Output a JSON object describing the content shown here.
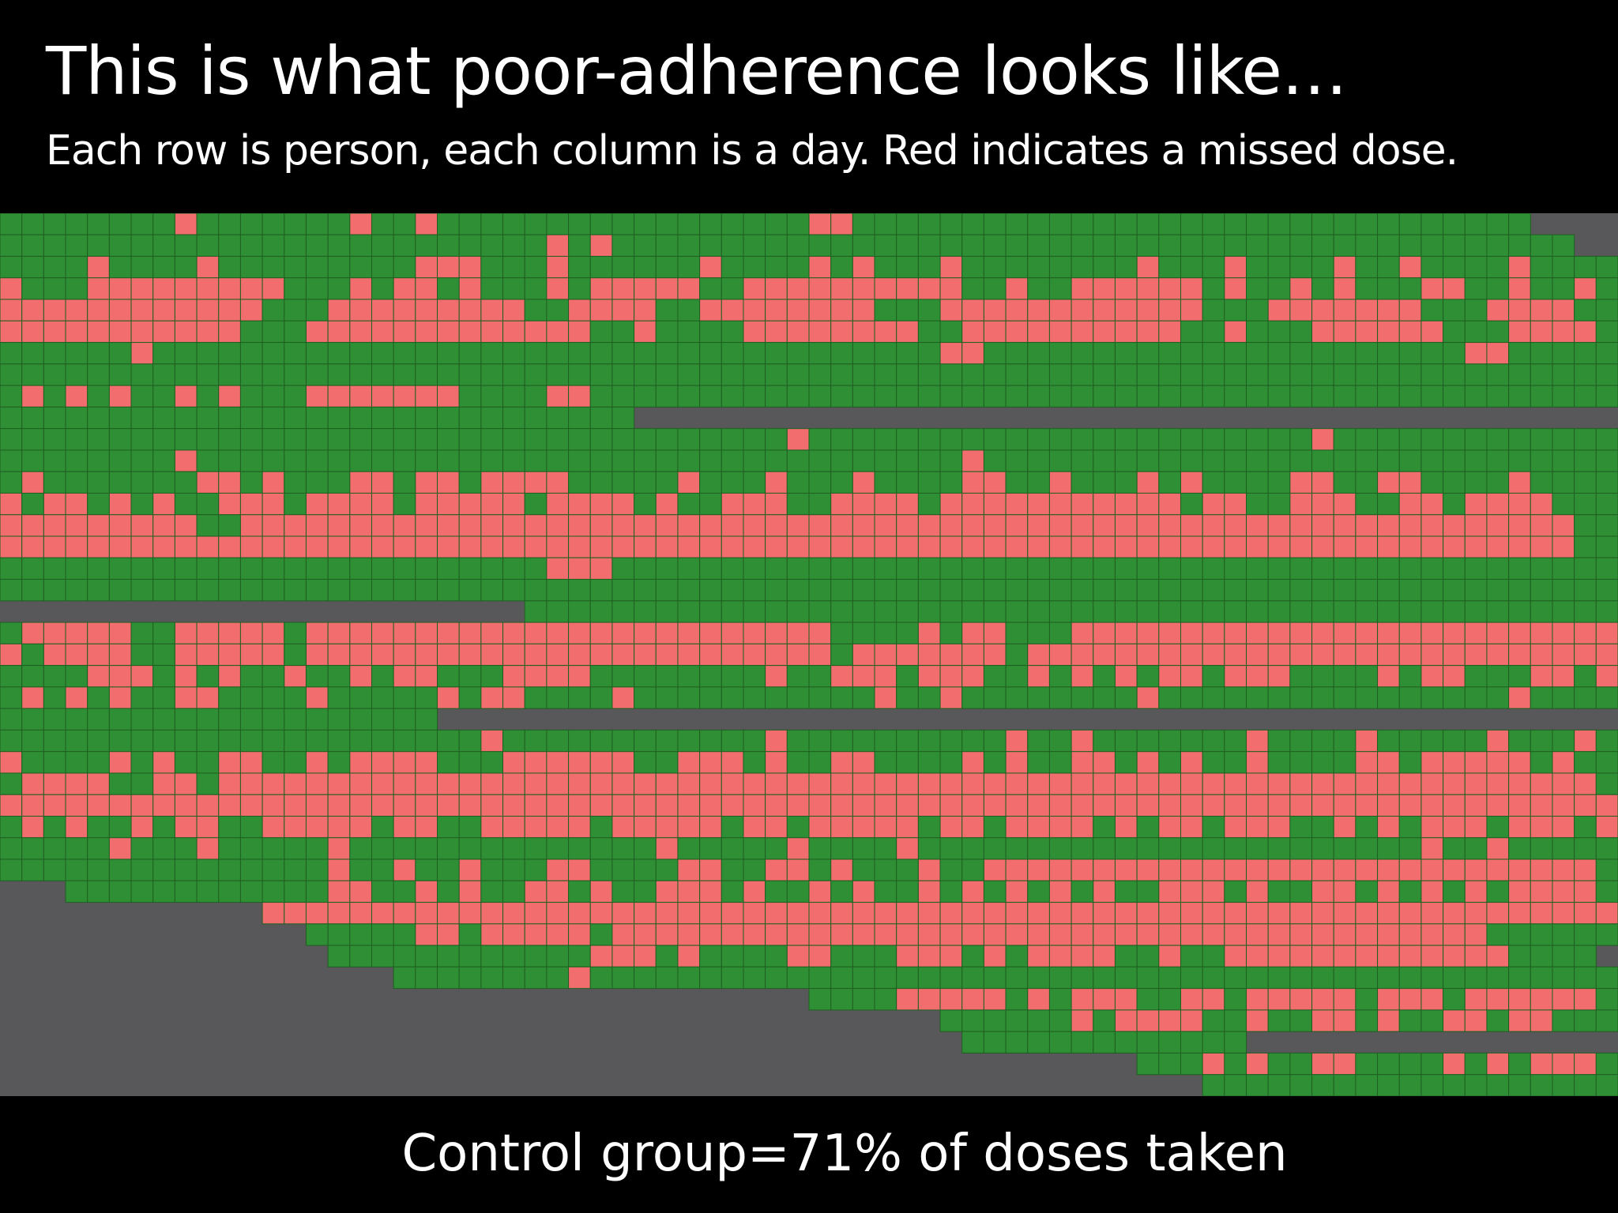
{
  "slide": {
    "title": "This is what poor-adherence looks like…",
    "subtitle": "Each row is person, each column is a day. Red indicates a missed dose.",
    "caption": "Control group=71% of doses taken"
  },
  "chart_data": {
    "type": "heatmap",
    "title": "",
    "xlabel": "",
    "ylabel": "",
    "legend": "none",
    "row_label": "person",
    "column_label": "day",
    "value_meanings": {
      "taken": "dose taken",
      "missed": "missed dose",
      "none": "no data"
    },
    "colors": {
      "taken": "#2f8f34",
      "missed": "#f26d6d",
      "none": "#58585a",
      "gridline": "#1f5f22"
    },
    "n_rows": 41,
    "n_days": 74,
    "active_days": [
      [
        0,
        69
      ],
      [
        0,
        71
      ],
      [
        0,
        73
      ],
      [
        0,
        73
      ],
      [
        0,
        73
      ],
      [
        0,
        73
      ],
      [
        0,
        73
      ],
      [
        0,
        73
      ],
      [
        0,
        73
      ],
      [
        0,
        28
      ],
      [
        0,
        73
      ],
      [
        0,
        73
      ],
      [
        0,
        73
      ],
      [
        0,
        73
      ],
      [
        0,
        73
      ],
      [
        0,
        73
      ],
      [
        0,
        73
      ],
      [
        0,
        73
      ],
      [
        24,
        73
      ],
      [
        0,
        73
      ],
      [
        0,
        73
      ],
      [
        0,
        73
      ],
      [
        0,
        73
      ],
      [
        0,
        19
      ],
      [
        0,
        73
      ],
      [
        0,
        73
      ],
      [
        0,
        73
      ],
      [
        0,
        73
      ],
      [
        0,
        73
      ],
      [
        0,
        73
      ],
      [
        0,
        73
      ],
      [
        3,
        73
      ],
      [
        12,
        73
      ],
      [
        14,
        73
      ],
      [
        15,
        72
      ],
      [
        18,
        73
      ],
      [
        37,
        73
      ],
      [
        43,
        73
      ],
      [
        44,
        56
      ],
      [
        52,
        73
      ],
      [
        55,
        73
      ]
    ],
    "missed_doses": [
      [
        8,
        16,
        19,
        37,
        38
      ],
      [
        25,
        27
      ],
      [
        4,
        9,
        19,
        20,
        21,
        25,
        32,
        37,
        39,
        43,
        52,
        56,
        61,
        64,
        69
      ],
      [
        0,
        4,
        5,
        6,
        7,
        8,
        9,
        10,
        11,
        12,
        16,
        18,
        19,
        21,
        25,
        27,
        28,
        29,
        30,
        31,
        34,
        35,
        36,
        37,
        38,
        39,
        40,
        41,
        42,
        43,
        46,
        49,
        50,
        51,
        52,
        53,
        54,
        56,
        59,
        61,
        65,
        66,
        69,
        72
      ],
      [
        0,
        1,
        2,
        3,
        4,
        5,
        6,
        7,
        8,
        9,
        10,
        11,
        15,
        16,
        17,
        18,
        19,
        20,
        21,
        22,
        23,
        26,
        27,
        28,
        29,
        32,
        33,
        34,
        35,
        36,
        37,
        38,
        39,
        43,
        44,
        45,
        46,
        47,
        48,
        49,
        50,
        51,
        52,
        53,
        54,
        58,
        59,
        60,
        61,
        62,
        63,
        64,
        68,
        69,
        70,
        71
      ],
      [
        0,
        1,
        2,
        3,
        4,
        5,
        6,
        7,
        8,
        9,
        10,
        14,
        15,
        16,
        17,
        18,
        19,
        20,
        21,
        22,
        23,
        24,
        25,
        26,
        29,
        34,
        35,
        36,
        37,
        38,
        39,
        40,
        41,
        44,
        45,
        46,
        47,
        48,
        49,
        50,
        51,
        52,
        53,
        56,
        60,
        61,
        62,
        63,
        64,
        65,
        69,
        70,
        71,
        72
      ],
      [
        6,
        43,
        44,
        67,
        68
      ],
      [],
      [
        1,
        3,
        5,
        8,
        10,
        14,
        15,
        16,
        17,
        18,
        19,
        20,
        25,
        26
      ],
      [],
      [
        36,
        60
      ],
      [
        8,
        44
      ],
      [
        1,
        9,
        10,
        12,
        16,
        17,
        19,
        20,
        22,
        23,
        24,
        25,
        31,
        35,
        39,
        44,
        45,
        48,
        52,
        54,
        59,
        60,
        63,
        64,
        69
      ],
      [
        0,
        2,
        3,
        5,
        7,
        10,
        11,
        12,
        14,
        15,
        16,
        17,
        19,
        20,
        21,
        22,
        23,
        25,
        26,
        27,
        28,
        30,
        33,
        34,
        35,
        38,
        39,
        40,
        41,
        43,
        44,
        45,
        46,
        47,
        48,
        49,
        50,
        51,
        52,
        53,
        55,
        56,
        59,
        60,
        61,
        64,
        65,
        67,
        68,
        69,
        70
      ],
      [
        0,
        1,
        2,
        3,
        4,
        5,
        6,
        7,
        8,
        11,
        12,
        13,
        14,
        15,
        16,
        17,
        18,
        19,
        20,
        21,
        22,
        23,
        24,
        25,
        26,
        27,
        28,
        29,
        30,
        31,
        32,
        33,
        34,
        35,
        36,
        37,
        38,
        39,
        40,
        41,
        42,
        43,
        44,
        45,
        46,
        47,
        48,
        49,
        50,
        51,
        52,
        53,
        54,
        55,
        56,
        57,
        58,
        59,
        60,
        61,
        62,
        63,
        64,
        65,
        66,
        67,
        68,
        69,
        70,
        71
      ],
      [
        0,
        1,
        2,
        3,
        4,
        5,
        6,
        7,
        8,
        9,
        10,
        11,
        12,
        13,
        14,
        15,
        16,
        17,
        18,
        19,
        20,
        21,
        22,
        23,
        24,
        25,
        26,
        27,
        28,
        29,
        30,
        31,
        32,
        33,
        34,
        35,
        36,
        37,
        38,
        39,
        40,
        41,
        42,
        43,
        44,
        45,
        46,
        47,
        48,
        49,
        50,
        51,
        52,
        53,
        54,
        55,
        56,
        57,
        58,
        59,
        60,
        61,
        62,
        63,
        64,
        65,
        66,
        67,
        68,
        69,
        70,
        71
      ],
      [
        25,
        26,
        27
      ],
      [],
      [],
      [
        1,
        2,
        3,
        4,
        5,
        8,
        9,
        10,
        11,
        12,
        14,
        15,
        16,
        17,
        18,
        19,
        20,
        21,
        22,
        23,
        24,
        25,
        26,
        27,
        28,
        29,
        30,
        31,
        32,
        33,
        34,
        35,
        36,
        37,
        42,
        44,
        45,
        49,
        50,
        51,
        52,
        53,
        54,
        55,
        56,
        57,
        58,
        59,
        60,
        61,
        62,
        63,
        64,
        65,
        66,
        67,
        68,
        69,
        70,
        71,
        72,
        73
      ],
      [
        0,
        2,
        3,
        4,
        5,
        8,
        9,
        10,
        11,
        12,
        14,
        15,
        16,
        17,
        18,
        19,
        20,
        21,
        22,
        23,
        24,
        25,
        26,
        27,
        28,
        29,
        30,
        31,
        32,
        33,
        34,
        35,
        36,
        37,
        39,
        40,
        41,
        42,
        43,
        44,
        45,
        47,
        48,
        49,
        50,
        51,
        52,
        53,
        54,
        55,
        56,
        57,
        58,
        59,
        60,
        61,
        62,
        63,
        64,
        65,
        66,
        67,
        68,
        69,
        70,
        71,
        72,
        73
      ],
      [
        4,
        5,
        6,
        8,
        10,
        13,
        16,
        18,
        19,
        23,
        24,
        25,
        26,
        35,
        38,
        39,
        40,
        42,
        43,
        44,
        47,
        49,
        51,
        53,
        54,
        56,
        57,
        58,
        63,
        65,
        66,
        70,
        71,
        73
      ],
      [
        1,
        3,
        5,
        8,
        9,
        14,
        20,
        22,
        23,
        28,
        40,
        43,
        52,
        69
      ],
      [],
      [
        22,
        35,
        46,
        49,
        57,
        62,
        68,
        72
      ],
      [
        0,
        5,
        7,
        10,
        11,
        14,
        16,
        17,
        18,
        19,
        23,
        24,
        25,
        26,
        27,
        28,
        31,
        32,
        33,
        35,
        38,
        39,
        44,
        46,
        49,
        50,
        52,
        54,
        57,
        62,
        63,
        65,
        66,
        67,
        68,
        69,
        71
      ],
      [
        1,
        2,
        3,
        4,
        7,
        8,
        10,
        11,
        12,
        13,
        14,
        15,
        16,
        17,
        18,
        19,
        20,
        21,
        22,
        23,
        24,
        25,
        26,
        27,
        28,
        29,
        30,
        31,
        32,
        33,
        34,
        35,
        36,
        37,
        38,
        39,
        40,
        41,
        42,
        43,
        44,
        45,
        46,
        47,
        48,
        49,
        50,
        51,
        52,
        53,
        54,
        55,
        56,
        57,
        58,
        59,
        60,
        61,
        62,
        63,
        64,
        65,
        66,
        67,
        68,
        69,
        70,
        71,
        72
      ],
      [
        0,
        1,
        2,
        3,
        4,
        5,
        6,
        7,
        8,
        9,
        10,
        11,
        12,
        13,
        14,
        15,
        16,
        17,
        18,
        19,
        20,
        21,
        22,
        23,
        24,
        25,
        26,
        27,
        28,
        29,
        30,
        31,
        32,
        33,
        34,
        35,
        36,
        37,
        38,
        39,
        40,
        41,
        42,
        43,
        44,
        45,
        46,
        47,
        48,
        49,
        50,
        51,
        52,
        53,
        54,
        55,
        56,
        57,
        58,
        59,
        60,
        61,
        62,
        63,
        64,
        65,
        66,
        67,
        68,
        69,
        70,
        71,
        72,
        73
      ],
      [
        1,
        3,
        6,
        8,
        9,
        12,
        13,
        14,
        15,
        16,
        18,
        19,
        22,
        23,
        24,
        25,
        26,
        28,
        29,
        30,
        31,
        32,
        34,
        35,
        37,
        38,
        39,
        40,
        41,
        43,
        44,
        46,
        47,
        48,
        49,
        51,
        53,
        54,
        56,
        57,
        58,
        61,
        63,
        65,
        66,
        67,
        69,
        70,
        71,
        73
      ],
      [
        5,
        9,
        15,
        30,
        36,
        41,
        65,
        68
      ],
      [
        15,
        18,
        21,
        25,
        26,
        31,
        32,
        35,
        36,
        38,
        42,
        45,
        46,
        47,
        48,
        49,
        50,
        51,
        52,
        53,
        54,
        55,
        56,
        57,
        58,
        59,
        60,
        61,
        62,
        63,
        64,
        65,
        66,
        67,
        68,
        69,
        70,
        71,
        72
      ],
      [
        15,
        16,
        19,
        21,
        24,
        25,
        27,
        30,
        31,
        32,
        34,
        37,
        39,
        42,
        44,
        46,
        48,
        50,
        53,
        54,
        55,
        57,
        60,
        61,
        63,
        65,
        67,
        69,
        70,
        71,
        72
      ],
      [
        12,
        13,
        14,
        15,
        16,
        17,
        18,
        19,
        20,
        21,
        22,
        23,
        24,
        25,
        26,
        27,
        28,
        29,
        30,
        31,
        32,
        33,
        34,
        35,
        36,
        37,
        38,
        39,
        40,
        41,
        42,
        43,
        44,
        45,
        46,
        47,
        48,
        49,
        50,
        51,
        52,
        53,
        54,
        55,
        56,
        57,
        58,
        59,
        60,
        61,
        62,
        63,
        64,
        65,
        66,
        67,
        68,
        69,
        70,
        71,
        72,
        73
      ],
      [
        19,
        20,
        22,
        23,
        24,
        25,
        26,
        28,
        29,
        30,
        31,
        32,
        33,
        34,
        35,
        36,
        37,
        38,
        39,
        40,
        41,
        42,
        43,
        44,
        45,
        46,
        47,
        48,
        49,
        50,
        51,
        52,
        53,
        54,
        55,
        56,
        57,
        58,
        59,
        60,
        61,
        62,
        63,
        64,
        65,
        66,
        67
      ],
      [
        27,
        28,
        29,
        31,
        36,
        37,
        41,
        42,
        43,
        45,
        47,
        48,
        49,
        50,
        53,
        56,
        57,
        58,
        59,
        60,
        61,
        62,
        63,
        64,
        65,
        66,
        67,
        68
      ],
      [
        26
      ],
      [
        41,
        42,
        43,
        44,
        45,
        47,
        49,
        50,
        51,
        54,
        55,
        57,
        58,
        59,
        60,
        61,
        63,
        64,
        65,
        67,
        68,
        69,
        70,
        71,
        72
      ],
      [
        49,
        51,
        52,
        53,
        54,
        57,
        60,
        61,
        63,
        66,
        67,
        69,
        70
      ],
      [],
      [
        55,
        57,
        60,
        61,
        66,
        68,
        70,
        71,
        72
      ]
    ]
  }
}
